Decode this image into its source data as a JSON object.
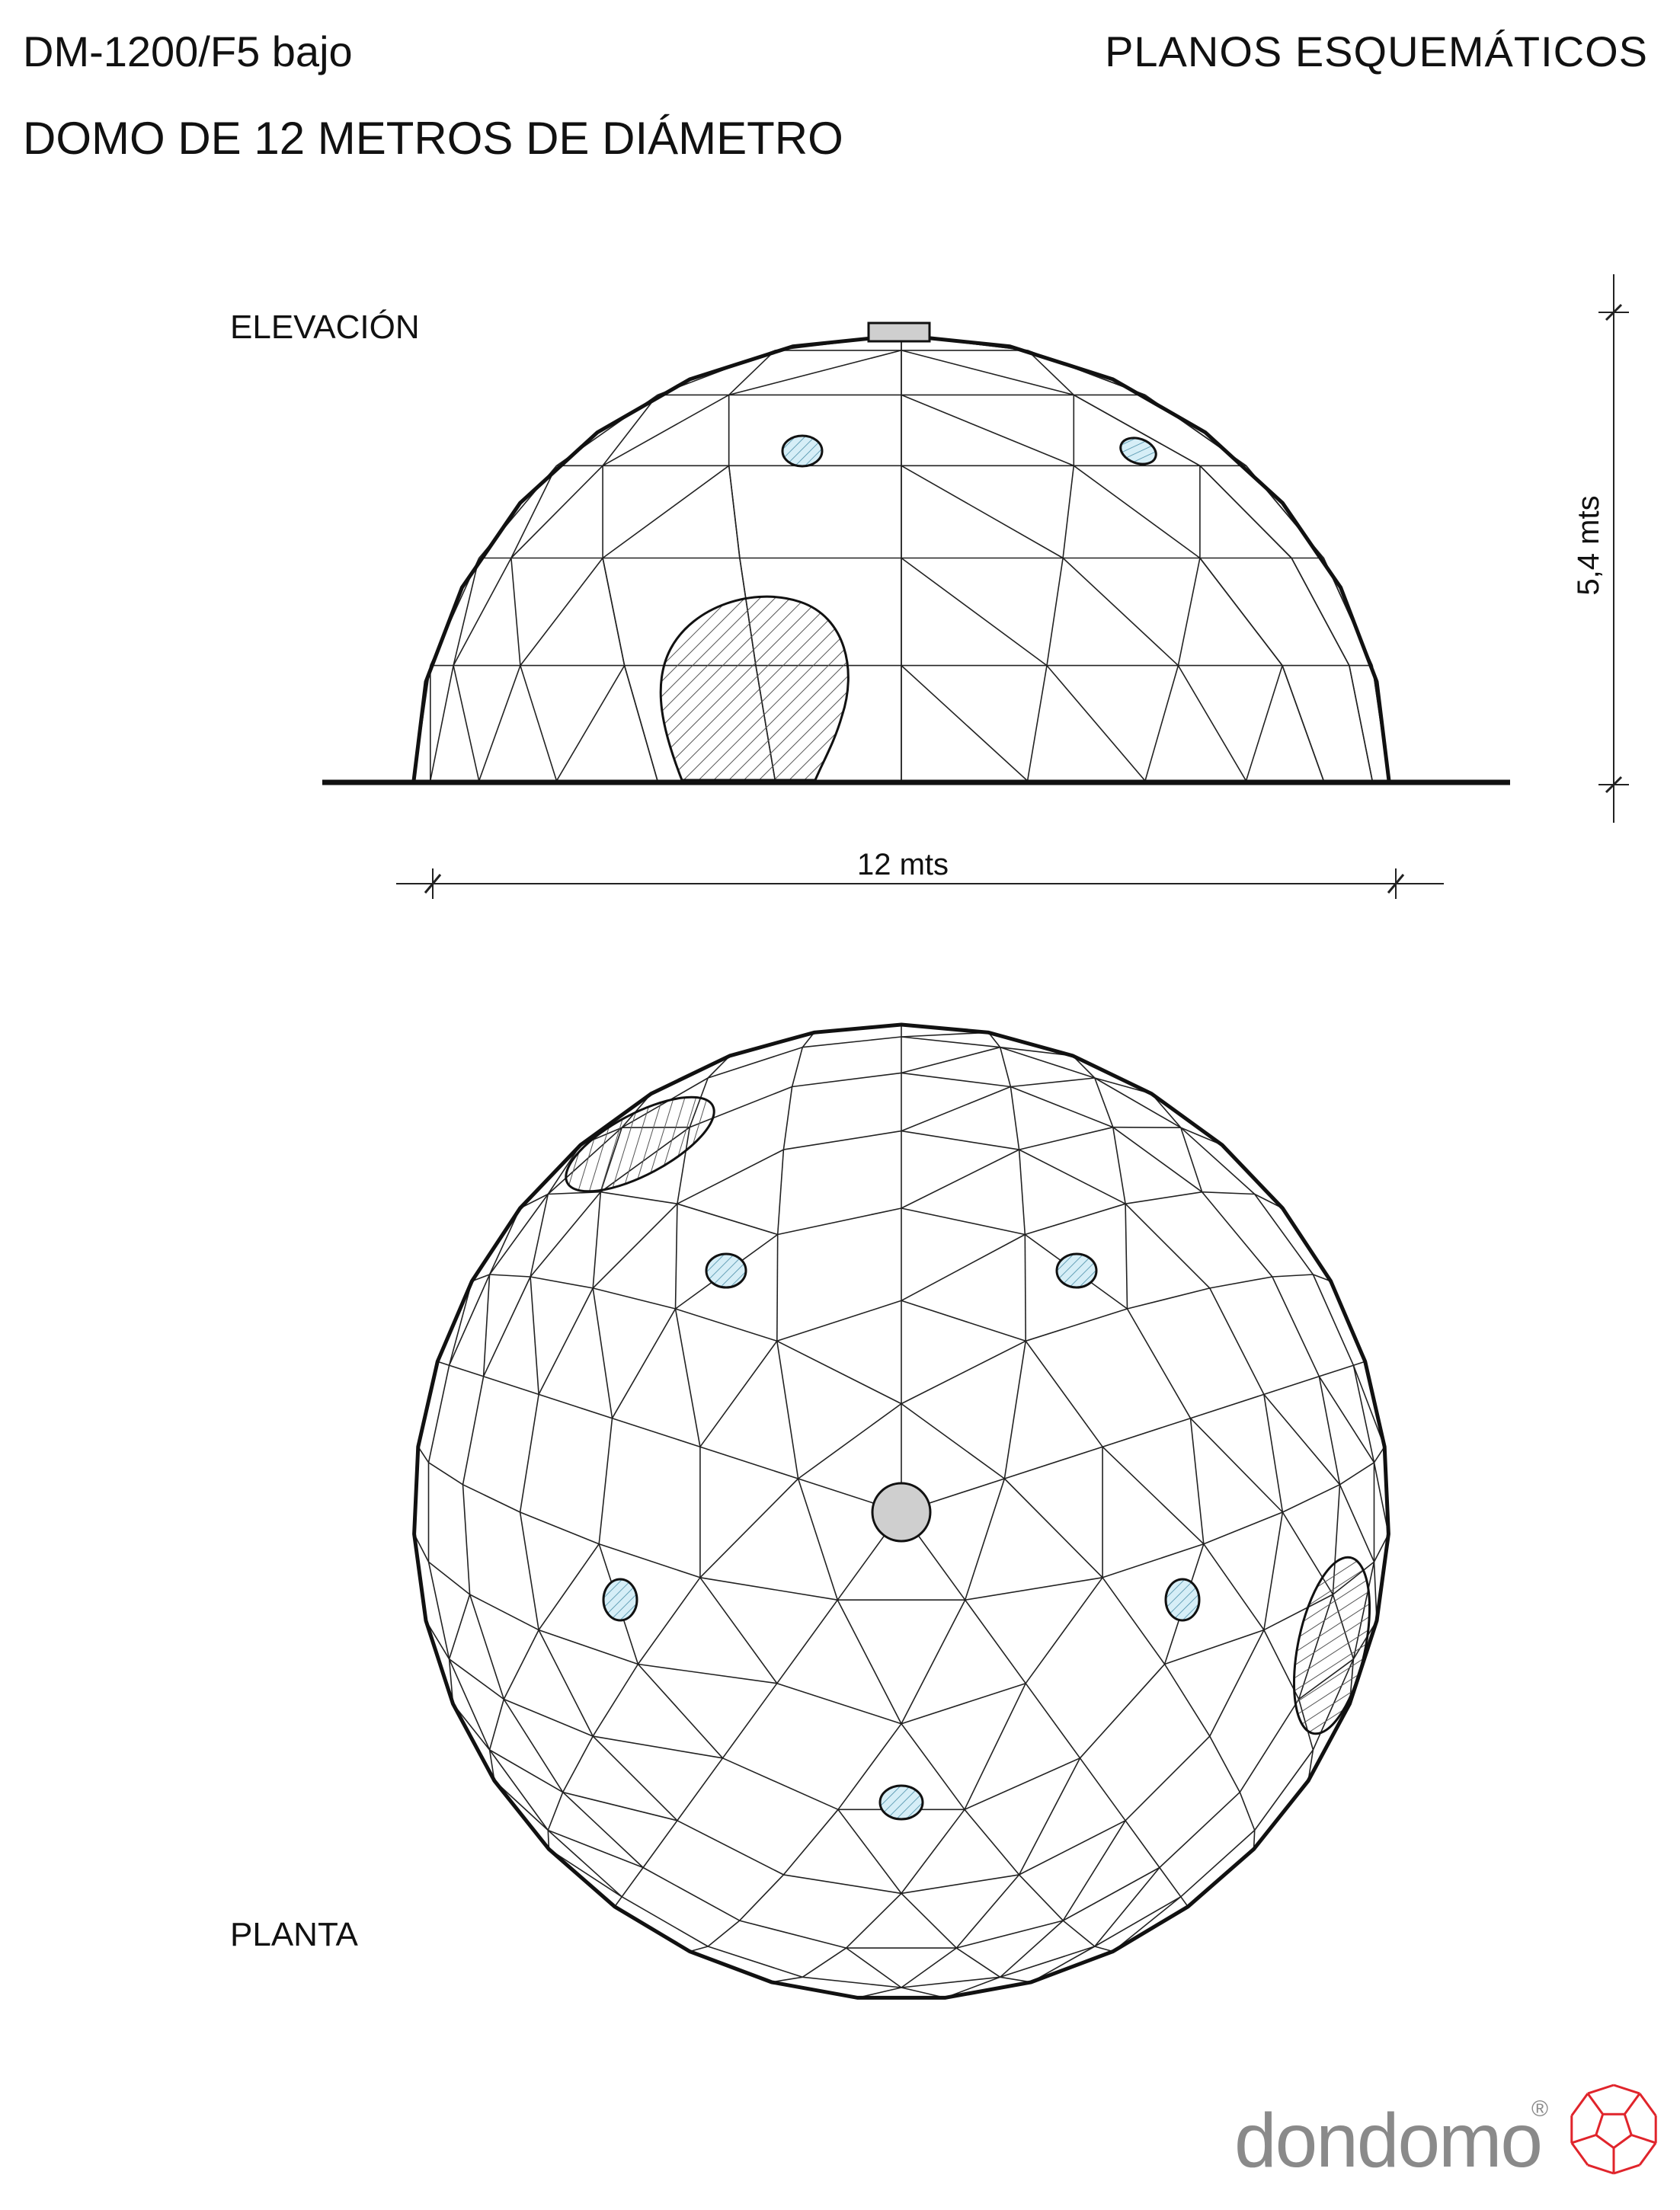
{
  "header": {
    "model": "DM-1200/F5 bajo",
    "section": "PLANOS ESQUEMÁTICOS",
    "title": "DOMO DE 12 METROS DE DIÁMETRO"
  },
  "views": {
    "elevation_label": "ELEVACIÓN",
    "plan_label": "PLANTA"
  },
  "dimensions": {
    "width": "12 mts",
    "height": "5,4 mts"
  },
  "brand": {
    "name": "dondomo",
    "mark": "®",
    "logo_color": "#e0242b"
  },
  "colors": {
    "window_fill": "#d6eef7",
    "hatch_line": "#555555",
    "cap_fill": "#cfcfcf"
  }
}
